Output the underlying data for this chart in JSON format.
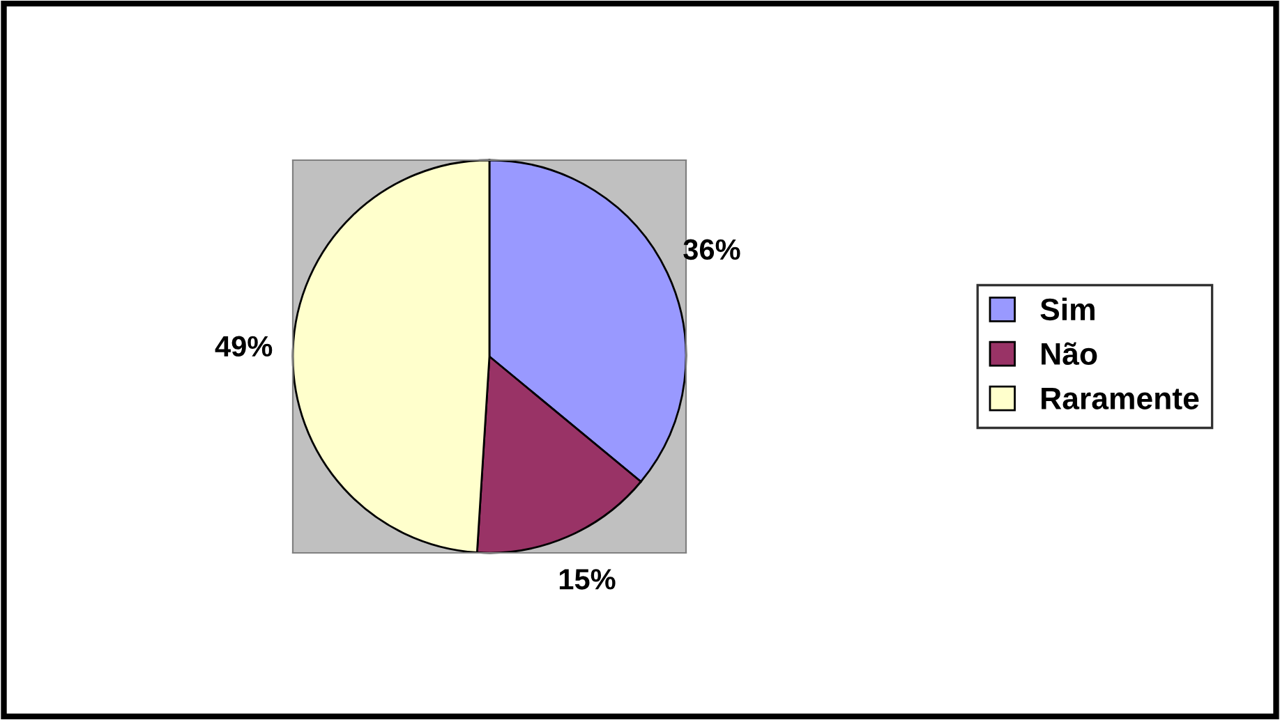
{
  "chart_data": {
    "type": "pie",
    "categories": [
      "Sim",
      "Não",
      "Raramente"
    ],
    "values": [
      36,
      15,
      49
    ],
    "colors": [
      "#9999ff",
      "#993366",
      "#ffffcc"
    ],
    "value_labels": [
      "36%",
      "15%",
      "49%"
    ],
    "legend": "right"
  }
}
